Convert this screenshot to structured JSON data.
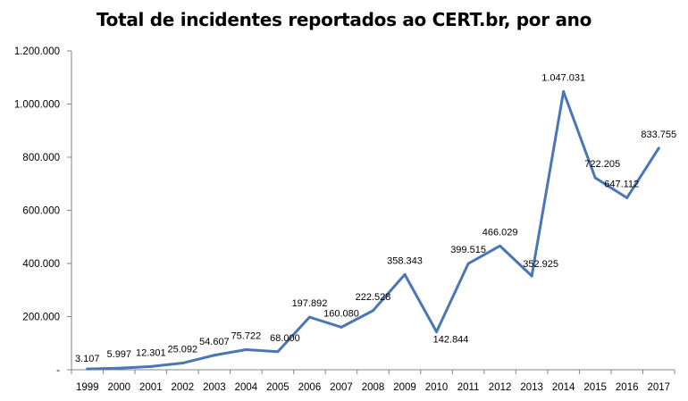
{
  "chart_data": {
    "type": "line",
    "title": "Total de incidentes reportados ao CERT.br, por ano",
    "xlabel": "",
    "ylabel": "",
    "categories": [
      "1999",
      "2000",
      "2001",
      "2002",
      "2003",
      "2004",
      "2005",
      "2006",
      "2007",
      "2008",
      "2009",
      "2010",
      "2011",
      "2012",
      "2013",
      "2014",
      "2015",
      "2016",
      "2017"
    ],
    "series": [
      {
        "values": [
          3107,
          5997,
          12301,
          25092,
          54607,
          75722,
          68000,
          197892,
          160080,
          222528,
          358343,
          142844,
          399515,
          466029,
          352925,
          1047031,
          722205,
          647112,
          833755
        ],
        "labels": [
          "3.107",
          "5.997",
          "12.301",
          "25.092",
          "54.607",
          "75.722",
          "68.000",
          "197.892",
          "160.080",
          "222.528",
          "358.343",
          "142.844",
          "399.515",
          "466.029",
          "352.925",
          "1.047.031",
          "722.205",
          "647.112",
          "833.755"
        ],
        "color": "#4a76b4"
      }
    ],
    "ylim": [
      0,
      1200000
    ],
    "y_ticks": [
      0,
      200000,
      400000,
      600000,
      800000,
      1000000,
      1200000
    ],
    "y_tick_labels": [
      "-",
      "200.000",
      "400.000",
      "600.000",
      "800.000",
      "1.000.000",
      "1.200.000"
    ],
    "grid": false,
    "legend": "none",
    "colors": {
      "line": "#4a76b4",
      "axis": "#868686"
    }
  }
}
